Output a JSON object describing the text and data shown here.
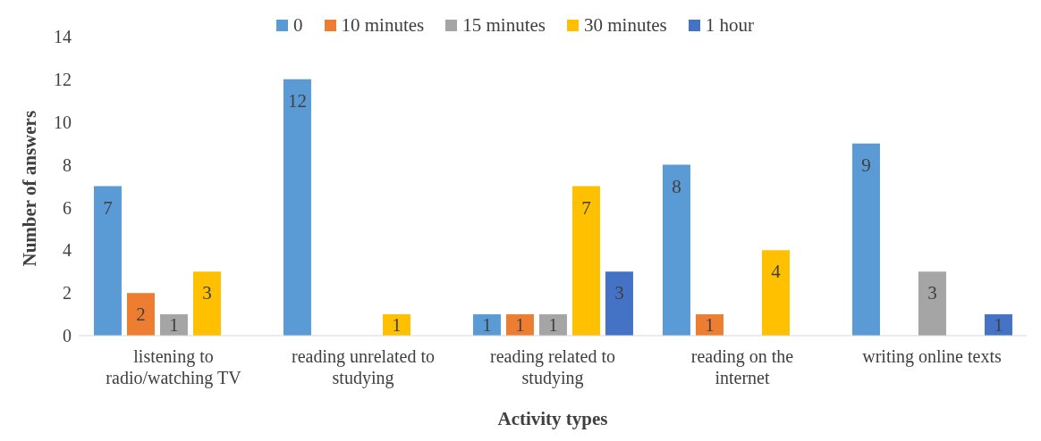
{
  "chart_data": {
    "type": "bar",
    "xlabel": "Activity types",
    "ylabel": "Number of answers",
    "categories": [
      "listening to radio/watching TV",
      "reading unrelated to studying",
      "reading related to studying",
      "reading on the internet",
      "writing online texts"
    ],
    "series": [
      {
        "name": "0",
        "color": "#5b9bd5",
        "values": [
          7,
          12,
          1,
          8,
          9
        ]
      },
      {
        "name": "10 minutes",
        "color": "#ed7d31",
        "values": [
          2,
          null,
          1,
          1,
          null
        ]
      },
      {
        "name": "15 minutes",
        "color": "#a5a5a5",
        "values": [
          1,
          null,
          1,
          null,
          3
        ]
      },
      {
        "name": "30 minutes",
        "color": "#ffc000",
        "values": [
          3,
          1,
          7,
          4,
          null
        ]
      },
      {
        "name": "1 hour",
        "color": "#4472c4",
        "values": [
          null,
          null,
          3,
          null,
          1
        ]
      }
    ],
    "ylim": [
      0,
      14
    ],
    "yticks": [
      0,
      2,
      4,
      6,
      8,
      10,
      12,
      14
    ],
    "grid": false,
    "legend": "top",
    "data_labels": true
  }
}
